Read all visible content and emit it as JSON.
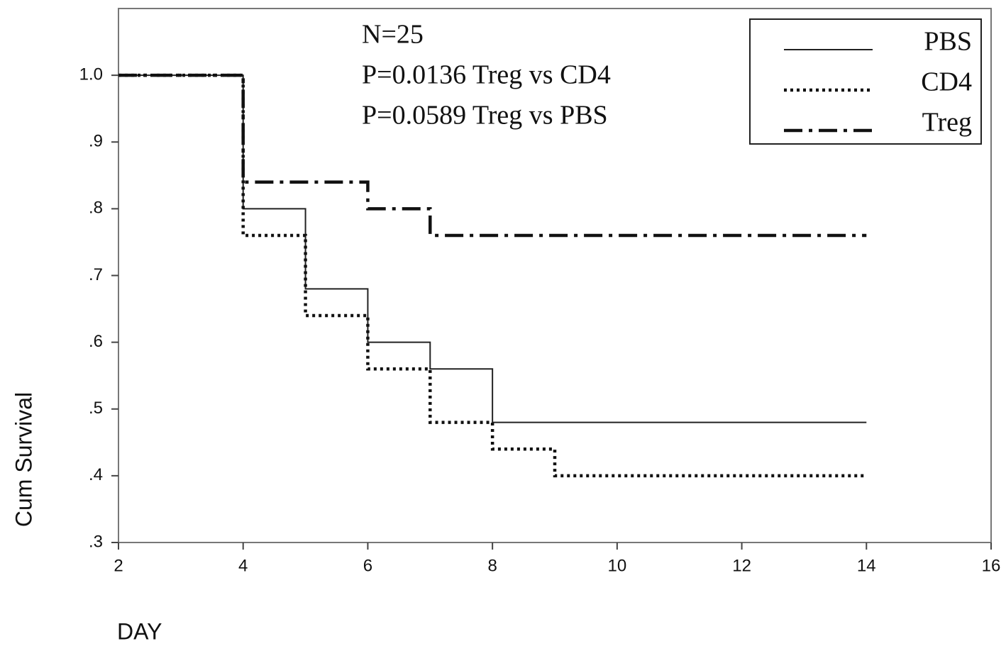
{
  "chart_data": {
    "type": "step",
    "xlabel": "DAY",
    "ylabel": "Cum Survival",
    "annotations": [
      "N=25",
      "P=0.0136 Treg vs CD4",
      "P=0.0589 Treg vs PBS"
    ],
    "xlim": [
      2,
      16
    ],
    "xticks": [
      2,
      4,
      6,
      8,
      10,
      12,
      14,
      16
    ],
    "ylim": [
      0.3,
      1.1
    ],
    "yticks": [
      {
        "value": 0.3,
        "label": ".3"
      },
      {
        "value": 0.4,
        "label": ".4"
      },
      {
        "value": 0.5,
        "label": ".5"
      },
      {
        "value": 0.6,
        "label": ".6"
      },
      {
        "value": 0.7,
        "label": ".7"
      },
      {
        "value": 0.8,
        "label": ".8"
      },
      {
        "value": 0.9,
        "label": ".9"
      },
      {
        "value": 1,
        "label": "1.0"
      }
    ],
    "legend": "upper right",
    "series": [
      {
        "name": "PBS",
        "color": "#222222",
        "line_style": "solid",
        "x": [
          2,
          4,
          5,
          6,
          7,
          8,
          14
        ],
        "values": [
          1,
          0.8,
          0.68,
          0.6,
          0.56,
          0.48,
          0.48
        ]
      },
      {
        "name": "CD4",
        "color": "#111111",
        "line_style": "dotted",
        "x": [
          2,
          4,
          5,
          6,
          7,
          8,
          9,
          14
        ],
        "values": [
          1,
          0.76,
          0.64,
          0.56,
          0.48,
          0.44,
          0.4,
          0.4
        ]
      },
      {
        "name": "Treg",
        "color": "#111111",
        "line_style": "dashdot",
        "x": [
          2,
          4,
          6,
          7,
          14
        ],
        "values": [
          1,
          0.84,
          0.8,
          0.76,
          0.76
        ]
      }
    ]
  }
}
